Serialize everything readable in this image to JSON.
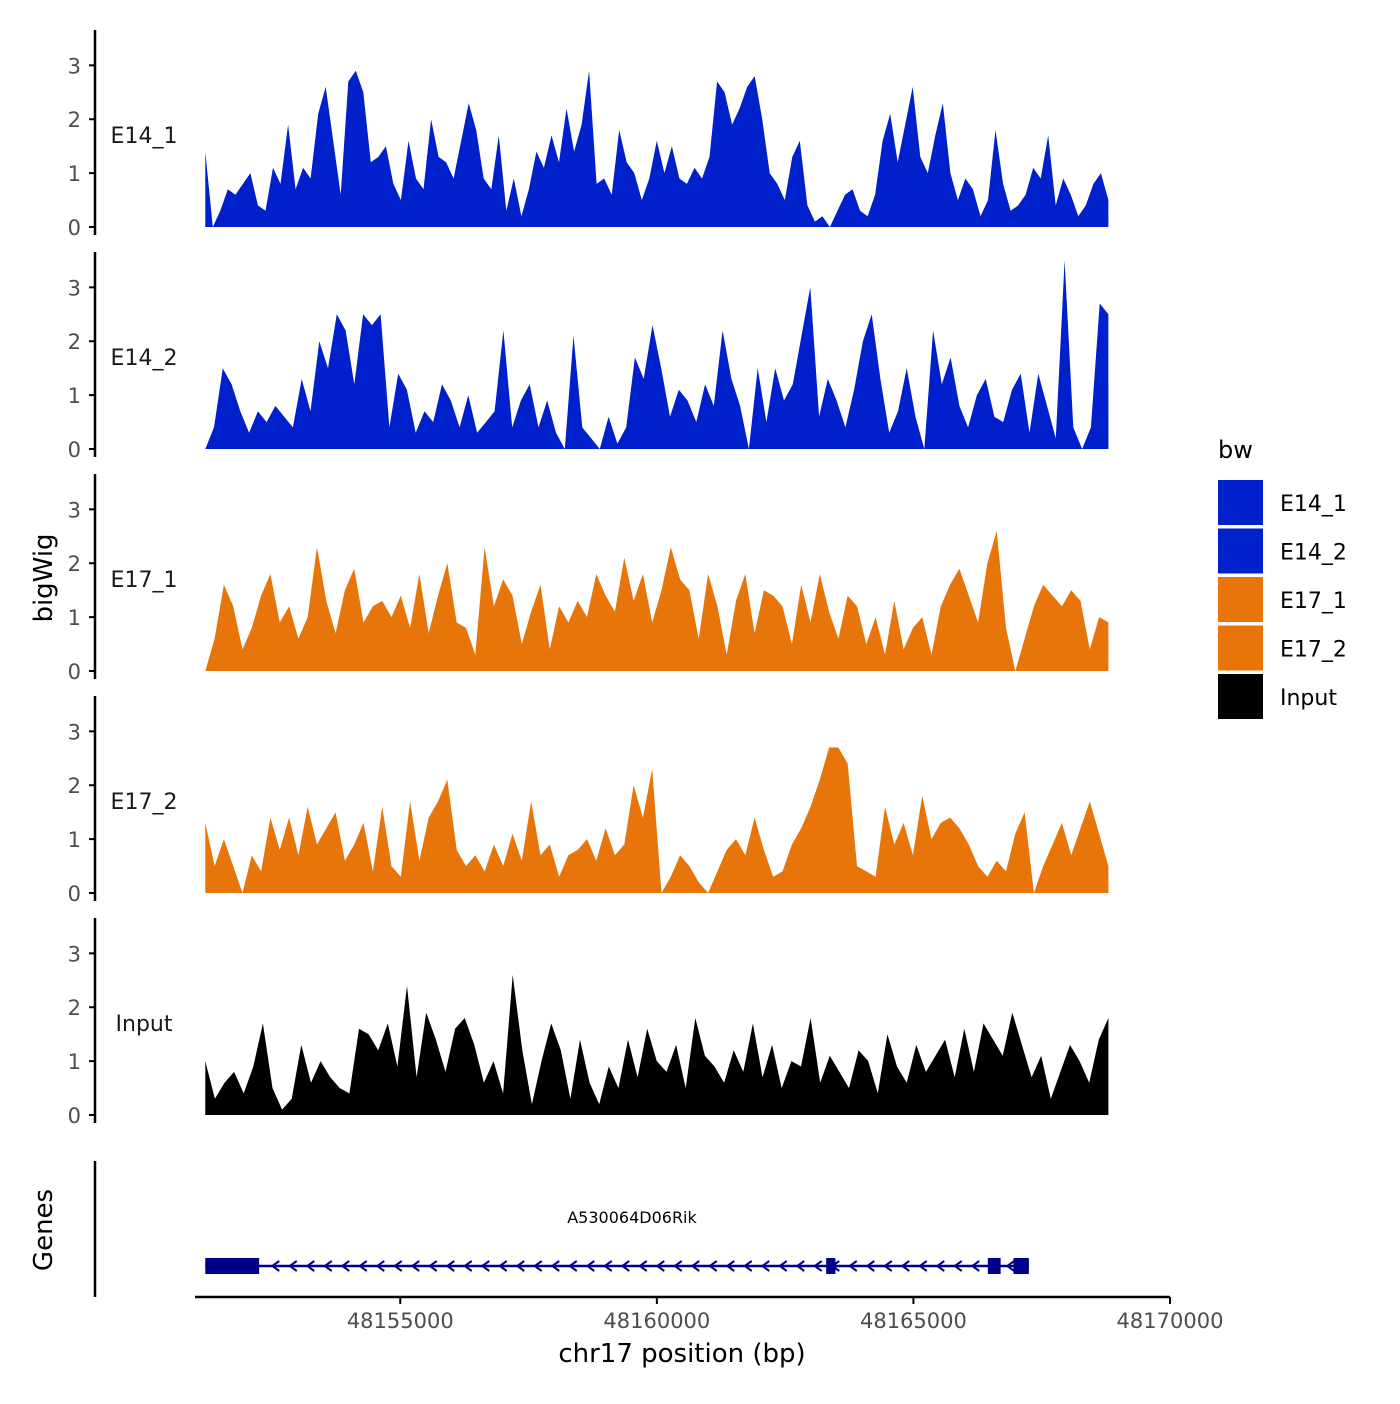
{
  "chart_data": {
    "type": "area",
    "title": "",
    "xlabel": "chr17 position (bp)",
    "ylabel": "bigWig",
    "gene_panel_label": "Genes",
    "xlim": [
      48151000,
      48170000
    ],
    "x_ticks": [
      48155000,
      48160000,
      48165000,
      48170000
    ],
    "x_tick_labels": [
      "48155000",
      "48160000",
      "48165000",
      "48170000"
    ],
    "ylim": [
      0,
      3.6
    ],
    "y_ticks": [
      0,
      1,
      2,
      3
    ],
    "y_tick_labels": [
      "0",
      "1",
      "2",
      "3"
    ],
    "grid": false,
    "legend": {
      "title": "bw",
      "position": "right",
      "entries": [
        {
          "name": "E14_1",
          "color": "#0020CC"
        },
        {
          "name": "E14_2",
          "color": "#0020CC"
        },
        {
          "name": "E17_1",
          "color": "#E8750A"
        },
        {
          "name": "E17_2",
          "color": "#E8750A"
        },
        {
          "name": "Input",
          "color": "#000000"
        }
      ]
    },
    "x_start": 48151200,
    "x_end": 48168800,
    "series": [
      {
        "name": "E14_1",
        "color": "#0020CC",
        "values": [
          1.4,
          0.0,
          0.3,
          0.7,
          0.6,
          0.8,
          1.0,
          0.4,
          0.3,
          1.1,
          0.8,
          1.9,
          0.7,
          1.1,
          0.9,
          2.1,
          2.6,
          1.6,
          0.6,
          2.7,
          2.9,
          2.5,
          1.2,
          1.3,
          1.5,
          0.8,
          0.5,
          1.6,
          0.9,
          0.7,
          2.0,
          1.3,
          1.2,
          0.9,
          1.6,
          2.3,
          1.8,
          0.9,
          0.7,
          1.7,
          0.3,
          0.9,
          0.2,
          0.7,
          1.4,
          1.1,
          1.7,
          1.2,
          2.2,
          1.4,
          1.9,
          2.9,
          0.8,
          0.9,
          0.6,
          1.8,
          1.2,
          1.0,
          0.5,
          0.9,
          1.6,
          1.0,
          1.5,
          0.9,
          0.8,
          1.1,
          0.9,
          1.3,
          2.7,
          2.5,
          1.9,
          2.2,
          2.6,
          2.8,
          2.0,
          1.0,
          0.8,
          0.5,
          1.3,
          1.6,
          0.4,
          0.1,
          0.2,
          0.0,
          0.3,
          0.6,
          0.7,
          0.3,
          0.2,
          0.6,
          1.6,
          2.1,
          1.2,
          1.9,
          2.6,
          1.3,
          1.0,
          1.7,
          2.3,
          1.0,
          0.5,
          0.9,
          0.7,
          0.2,
          0.5,
          1.8,
          0.8,
          0.3,
          0.4,
          0.6,
          1.1,
          0.9,
          1.7,
          0.4,
          0.9,
          0.6,
          0.2,
          0.4,
          0.8,
          1.0,
          0.5
        ]
      },
      {
        "name": "E14_2",
        "color": "#0020CC",
        "values": [
          0.0,
          0.4,
          1.5,
          1.2,
          0.7,
          0.3,
          0.7,
          0.5,
          0.8,
          0.6,
          0.4,
          1.3,
          0.7,
          2.0,
          1.5,
          2.5,
          2.2,
          1.2,
          2.5,
          2.3,
          2.5,
          0.4,
          1.4,
          1.1,
          0.3,
          0.7,
          0.5,
          1.2,
          0.9,
          0.4,
          1.0,
          0.3,
          0.5,
          0.7,
          2.2,
          0.4,
          0.9,
          1.2,
          0.4,
          0.9,
          0.3,
          0.0,
          2.1,
          0.4,
          0.2,
          0.0,
          0.6,
          0.1,
          0.4,
          1.7,
          1.3,
          2.3,
          1.5,
          0.6,
          1.1,
          0.9,
          0.5,
          1.2,
          0.8,
          2.2,
          1.3,
          0.8,
          0.0,
          1.5,
          0.5,
          1.5,
          0.9,
          1.2,
          2.1,
          3.0,
          0.6,
          1.3,
          0.9,
          0.4,
          1.1,
          2.0,
          2.5,
          1.3,
          0.3,
          0.7,
          1.5,
          0.6,
          0.0,
          2.2,
          1.2,
          1.7,
          0.8,
          0.4,
          1.0,
          1.3,
          0.6,
          0.5,
          1.1,
          1.4,
          0.3,
          1.4,
          0.8,
          0.2,
          3.5,
          0.4,
          0.0,
          0.4,
          2.7,
          2.5
        ]
      },
      {
        "name": "E17_1",
        "color": "#E8750A",
        "values": [
          0.0,
          0.6,
          1.6,
          1.2,
          0.4,
          0.8,
          1.4,
          1.8,
          0.9,
          1.2,
          0.6,
          1.0,
          2.3,
          1.3,
          0.7,
          1.5,
          1.9,
          0.9,
          1.2,
          1.3,
          1.0,
          1.4,
          0.8,
          1.8,
          0.7,
          1.4,
          2.0,
          0.9,
          0.8,
          0.3,
          2.3,
          1.2,
          1.7,
          1.4,
          0.5,
          1.1,
          1.6,
          0.4,
          1.2,
          0.9,
          1.3,
          1.0,
          1.8,
          1.4,
          1.1,
          2.1,
          1.3,
          1.8,
          0.9,
          1.5,
          2.3,
          1.7,
          1.5,
          0.6,
          1.8,
          1.2,
          0.3,
          1.3,
          1.8,
          0.7,
          1.5,
          1.4,
          1.2,
          0.5,
          1.6,
          0.9,
          1.8,
          1.1,
          0.6,
          1.4,
          1.2,
          0.5,
          1.0,
          0.3,
          1.3,
          0.4,
          0.8,
          1.0,
          0.3,
          1.2,
          1.6,
          1.9,
          1.4,
          0.9,
          2.0,
          2.6,
          0.8,
          0.0,
          0.6,
          1.2,
          1.6,
          1.4,
          1.2,
          1.5,
          1.3,
          0.4,
          1.0,
          0.9
        ]
      },
      {
        "name": "E17_2",
        "color": "#E8750A",
        "values": [
          1.3,
          0.5,
          1.0,
          0.5,
          0.0,
          0.7,
          0.4,
          1.4,
          0.8,
          1.4,
          0.7,
          1.6,
          0.9,
          1.2,
          1.5,
          0.6,
          0.9,
          1.3,
          0.4,
          1.6,
          0.5,
          0.3,
          1.7,
          0.6,
          1.4,
          1.7,
          2.1,
          0.8,
          0.5,
          0.7,
          0.4,
          0.9,
          0.5,
          1.1,
          0.6,
          1.7,
          0.7,
          0.9,
          0.3,
          0.7,
          0.8,
          1.0,
          0.6,
          1.2,
          0.7,
          0.9,
          2.0,
          1.4,
          2.3,
          0.0,
          0.3,
          0.7,
          0.5,
          0.2,
          0.0,
          0.4,
          0.8,
          1.0,
          0.7,
          1.4,
          0.8,
          0.3,
          0.4,
          0.9,
          1.2,
          1.6,
          2.1,
          2.7,
          2.7,
          2.4,
          0.5,
          0.4,
          0.3,
          1.6,
          0.9,
          1.3,
          0.7,
          1.8,
          1.0,
          1.3,
          1.4,
          1.2,
          0.9,
          0.5,
          0.3,
          0.6,
          0.4,
          1.1,
          1.5,
          0.0,
          0.5,
          0.9,
          1.3,
          0.7,
          1.2,
          1.7,
          1.1,
          0.5
        ]
      },
      {
        "name": "Input",
        "color": "#000000",
        "values": [
          1.0,
          0.3,
          0.6,
          0.8,
          0.4,
          0.9,
          1.7,
          0.5,
          0.1,
          0.3,
          1.3,
          0.6,
          1.0,
          0.7,
          0.5,
          0.4,
          1.6,
          1.5,
          1.2,
          1.7,
          0.9,
          2.4,
          0.7,
          1.9,
          1.4,
          0.8,
          1.6,
          1.8,
          1.3,
          0.6,
          1.0,
          0.4,
          2.6,
          1.2,
          0.2,
          1.0,
          1.7,
          1.2,
          0.3,
          1.4,
          0.6,
          0.2,
          0.9,
          0.5,
          1.4,
          0.7,
          1.6,
          1.0,
          0.8,
          1.3,
          0.5,
          1.8,
          1.1,
          0.9,
          0.6,
          1.2,
          0.8,
          1.7,
          0.7,
          1.3,
          0.5,
          1.0,
          0.9,
          1.8,
          0.6,
          1.1,
          0.8,
          0.5,
          1.2,
          1.0,
          0.4,
          1.5,
          0.9,
          0.6,
          1.3,
          0.8,
          1.1,
          1.4,
          0.7,
          1.6,
          0.8,
          1.7,
          1.4,
          1.1,
          1.9,
          1.3,
          0.7,
          1.1,
          0.3,
          0.8,
          1.3,
          1.0,
          0.6,
          1.4,
          1.8
        ]
      }
    ],
    "gene": {
      "name": "A530064D06Rik",
      "strand": "-",
      "start": 48151200,
      "end": 48167250,
      "color": "#00008B",
      "exons": [
        [
          48151200,
          48152250
        ],
        [
          48163300,
          48163480
        ],
        [
          48166450,
          48166700
        ],
        [
          48166950,
          48167250
        ]
      ]
    }
  }
}
